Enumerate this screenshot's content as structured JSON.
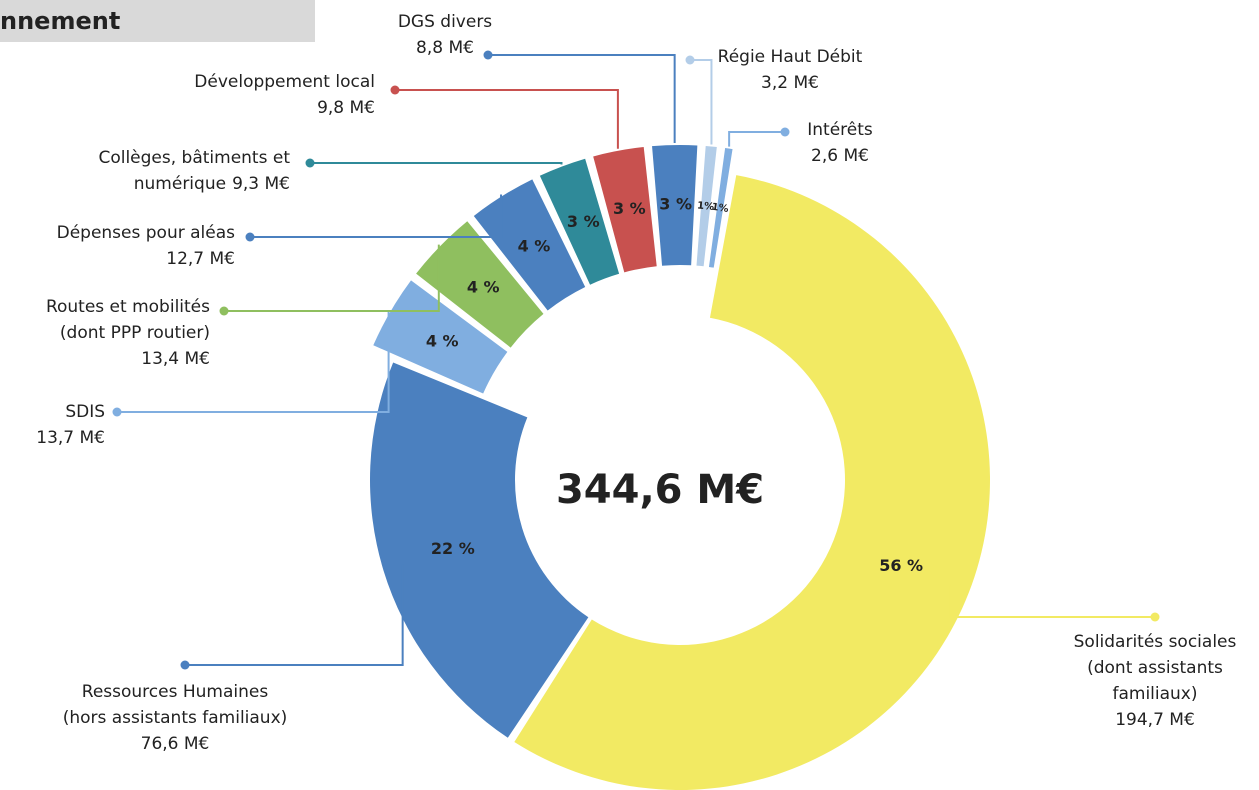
{
  "header": {
    "title": "nnement"
  },
  "chart_data": {
    "type": "donut",
    "total_label": "344,6 M€",
    "labels": [
      [
        "Solidarités sociales",
        "(dont assistants",
        "familiaux)"
      ],
      [
        "Ressources Humaines",
        "(hors assistants familiaux)"
      ],
      [
        "SDIS"
      ],
      [
        "Routes et mobilités",
        "(dont PPP routier)"
      ],
      [
        "Dépenses pour aléas"
      ],
      [
        "Collèges, bâtiments et",
        "numérique"
      ],
      [
        "Développement local"
      ],
      [
        "DGS divers"
      ],
      [
        "Régie Haut Débit"
      ],
      [
        "Intérêts"
      ]
    ],
    "values": [
      194.7,
      76.6,
      13.7,
      13.4,
      12.7,
      9.3,
      9.8,
      8.8,
      3.2,
      2.6
    ],
    "value_labels": [
      "194,7 M€",
      "76,6 M€",
      "13,7 M€",
      "13,4 M€",
      "12,7 M€",
      "9,3 M€",
      "9,8 M€",
      "8,8 M€",
      "3,2 M€",
      "2,6 M€"
    ],
    "percent_labels": [
      "56 %",
      "22 %",
      "4 %",
      "4 %",
      "4 %",
      "3 %",
      "3 %",
      "3 %",
      "1%",
      "1%"
    ],
    "colors": [
      "#f2ea63",
      "#4b80bf",
      "#80aee0",
      "#8fbf5f",
      "#4b80bf",
      "#2f8a99",
      "#c8514f",
      "#4b80bf",
      "#b3cde8",
      "#80aee0"
    ]
  }
}
